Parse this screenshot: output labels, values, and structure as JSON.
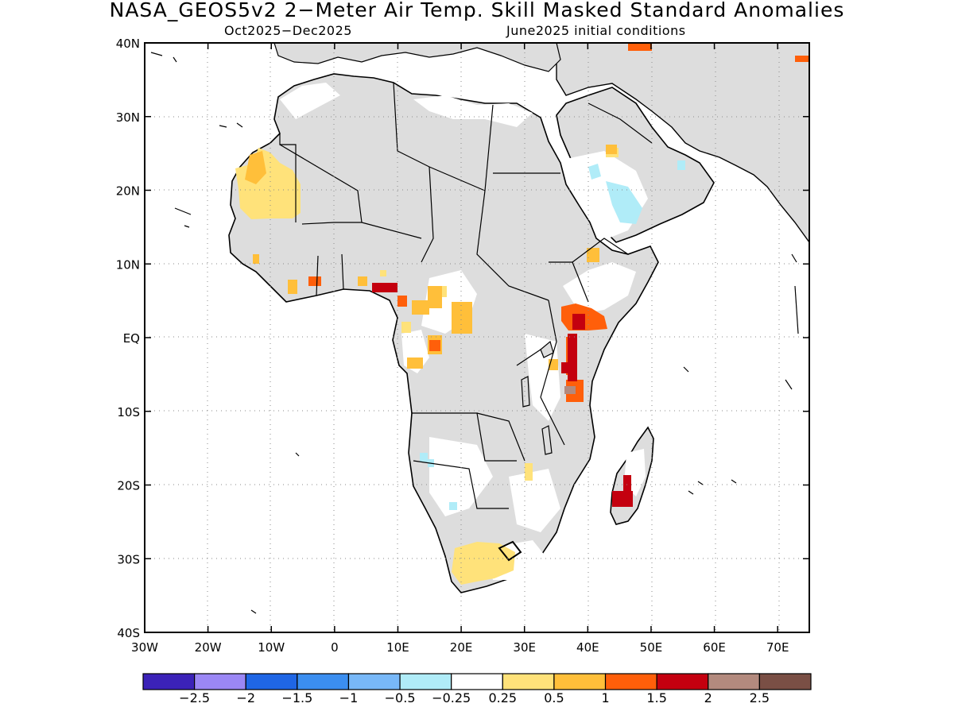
{
  "title": "NASA_GEOS5v2 2−Meter Air Temp. Skill Masked Standard Anomalies",
  "subtitle_left": "Oct2025−Dec2025",
  "subtitle_right": "June2025 initial conditions",
  "lat_labels": [
    "40N",
    "30N",
    "20N",
    "10N",
    "EQ",
    "10S",
    "20S",
    "30S",
    "40S"
  ],
  "lon_labels": [
    "30W",
    "20W",
    "10W",
    "0",
    "10E",
    "20E",
    "30E",
    "40E",
    "50E",
    "60E",
    "70E"
  ],
  "colorbar": {
    "colors": [
      "#3b22b8",
      "#9b87f5",
      "#1f66e5",
      "#3b8ef0",
      "#78b8f8",
      "#b0ecf8",
      "#ffffff",
      "#ffe27a",
      "#ffbf3a",
      "#ff5f0a",
      "#c4000f",
      "#b38a7e",
      "#7a4f45"
    ],
    "labels": [
      "−2.5",
      "−2",
      "−1.5",
      "−1",
      "−0.5",
      "−0.25",
      "0.25",
      "0.5",
      "1",
      "1.5",
      "2",
      "2.5"
    ]
  },
  "map_data": {
    "domain": {
      "lon": [
        -30,
        75
      ],
      "lat": [
        -40,
        40
      ]
    },
    "masked_color": "#dddddd",
    "anomaly_regions": [
      {
        "name": "Western Sahara / Mauritania",
        "category": "0.25 to 0.5"
      },
      {
        "name": "Coastal West Africa",
        "category": "0.5 to 1.5"
      },
      {
        "name": "Nigeria / Cameroon",
        "category": "0.5 to 2"
      },
      {
        "name": "Gabon / Congo",
        "category": "0.5 to 1"
      },
      {
        "name": "Kenya / Uganda",
        "category": "1 to 1.5"
      },
      {
        "name": "Tanzania",
        "category": "1 to 2.5"
      },
      {
        "name": "Madagascar",
        "category": "1.5 to 2"
      },
      {
        "name": "Arabian Peninsula",
        "category": "-0.5 to -0.25"
      },
      {
        "name": "South Africa",
        "category": "0.25 to 0.5"
      },
      {
        "name": "Namibia / Botswana",
        "category": "-0.5 to -0.25"
      }
    ]
  }
}
